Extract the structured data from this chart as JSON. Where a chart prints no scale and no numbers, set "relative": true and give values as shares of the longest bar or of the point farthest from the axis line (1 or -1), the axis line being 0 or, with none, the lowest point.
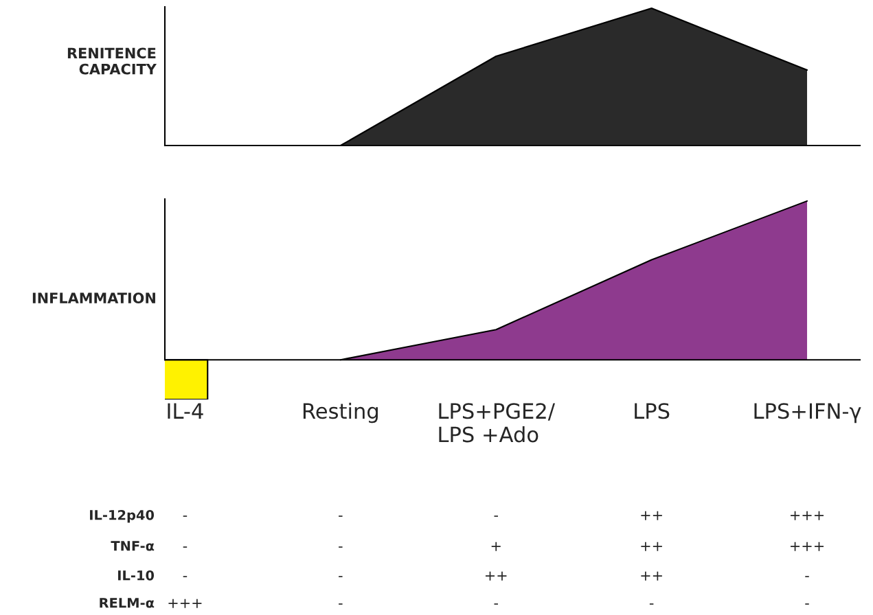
{
  "chart_data": [
    {
      "type": "area",
      "relative": true,
      "ylabel": "RENITENCE\nCAPACITY",
      "categories": [
        null,
        null,
        null,
        null,
        null
      ],
      "tick_labels": false,
      "series": [
        {
          "color": "#2a2a2a",
          "values": [
            0,
            0,
            0.65,
            1,
            0.55
          ]
        }
      ]
    },
    {
      "type": "area",
      "relative": true,
      "ylabel": "INFLAMMATION",
      "categories": [
        "IL-4",
        "Resting",
        "LPS+PGE2/\nLPS +Ado",
        "LPS",
        "LPS+IFN-γ"
      ],
      "tick_labels": "x",
      "series": [
        {
          "type": "bar",
          "color": "#fff200",
          "values": [
            -0.25,
            null,
            null,
            null,
            null
          ]
        },
        {
          "color": "#8e3a8e",
          "values": [
            null,
            0,
            0.19,
            0.63,
            1
          ]
        }
      ]
    },
    {
      "type": "other",
      "annotations": [
        "IL-12p40",
        "-",
        "-",
        "-",
        "++",
        "+++",
        "TNF-α",
        "-",
        "-",
        "+",
        "++",
        "+++",
        "IL-10",
        "-",
        "-",
        "++",
        "++",
        "-",
        "RELM-α",
        "+++",
        "-",
        "-",
        "-",
        "-"
      ]
    }
  ]
}
